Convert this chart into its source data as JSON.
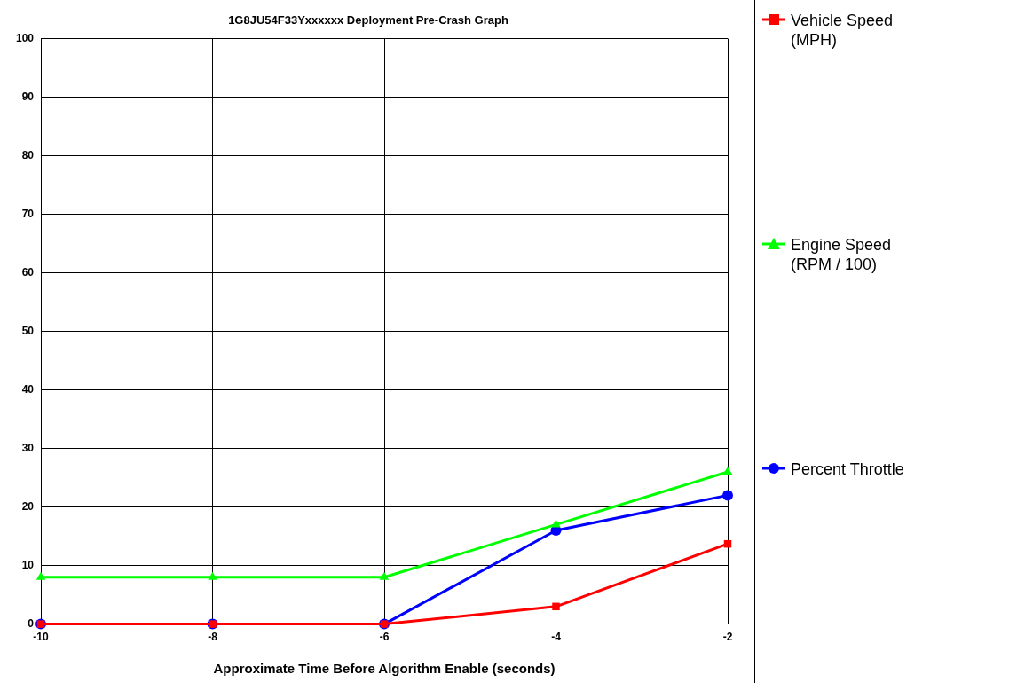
{
  "chart_data": {
    "type": "line",
    "title": "1G8JU54F33Yxxxxxx Deployment Pre-Crash Graph",
    "xlabel": "Approximate Time Before Algorithm Enable (seconds)",
    "x": [
      -10,
      -8,
      -6,
      -4,
      -2
    ],
    "series": [
      {
        "name": "Vehicle Speed (MPH)",
        "color": "#ff0000",
        "marker": "square",
        "values": [
          0,
          0,
          0,
          3,
          13.7
        ]
      },
      {
        "name": "Engine Speed (RPM / 100)",
        "color": "#00ff00",
        "marker": "triangle",
        "values": [
          8,
          8,
          8,
          17,
          26
        ]
      },
      {
        "name": "Percent Throttle",
        "color": "#0000ff",
        "marker": "circle",
        "values": [
          0,
          0,
          0,
          16,
          22
        ]
      }
    ],
    "xlim": [
      -10,
      -2
    ],
    "xticks": [
      -10,
      -8,
      -6,
      -4,
      -2
    ],
    "ylim": [
      0,
      100
    ],
    "yticks": [
      0,
      10,
      20,
      30,
      40,
      50,
      60,
      70,
      80,
      90,
      100
    ],
    "grid": true,
    "legend": "right",
    "line_style": "solid"
  }
}
